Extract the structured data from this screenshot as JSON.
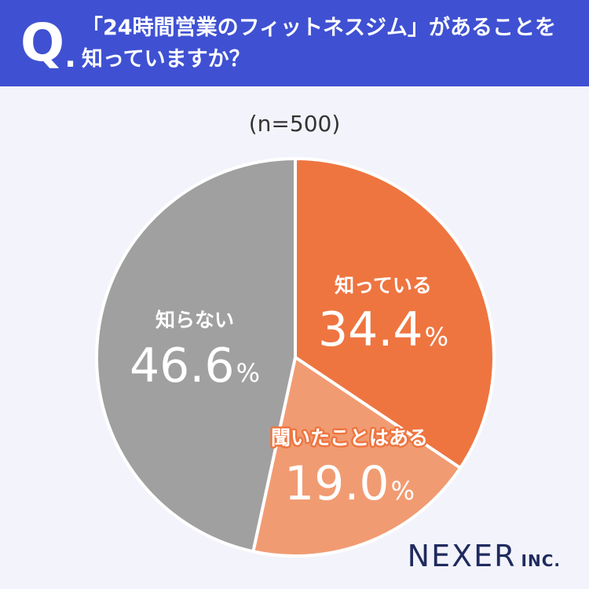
{
  "header": {
    "q_label": "Q",
    "q_dot": ".",
    "question_line1": "「24時間営業のフィットネスジム」があることを",
    "question_line2": "知っていますか？"
  },
  "sample_size": "(n=500)",
  "brand": {
    "name": "NEXER",
    "suffix": "INC."
  },
  "colors": {
    "header_bg": "#3f51d2",
    "background": "#f3f3fb",
    "know": "#ee7540",
    "heard": "#f19b72",
    "dont_know": "#a0a0a0"
  },
  "chart_data": {
    "type": "pie",
    "title": "「24時間営業のフィットネスジム」があることを知っていますか？",
    "sample": "n=500",
    "unit": "%",
    "slices": [
      {
        "label": "知っている",
        "value": 34.4,
        "color": "#ee7540"
      },
      {
        "label": "聞いたことはある",
        "value": 19.0,
        "color": "#f19b72"
      },
      {
        "label": "知らない",
        "value": 46.6,
        "color": "#a0a0a0"
      }
    ]
  }
}
